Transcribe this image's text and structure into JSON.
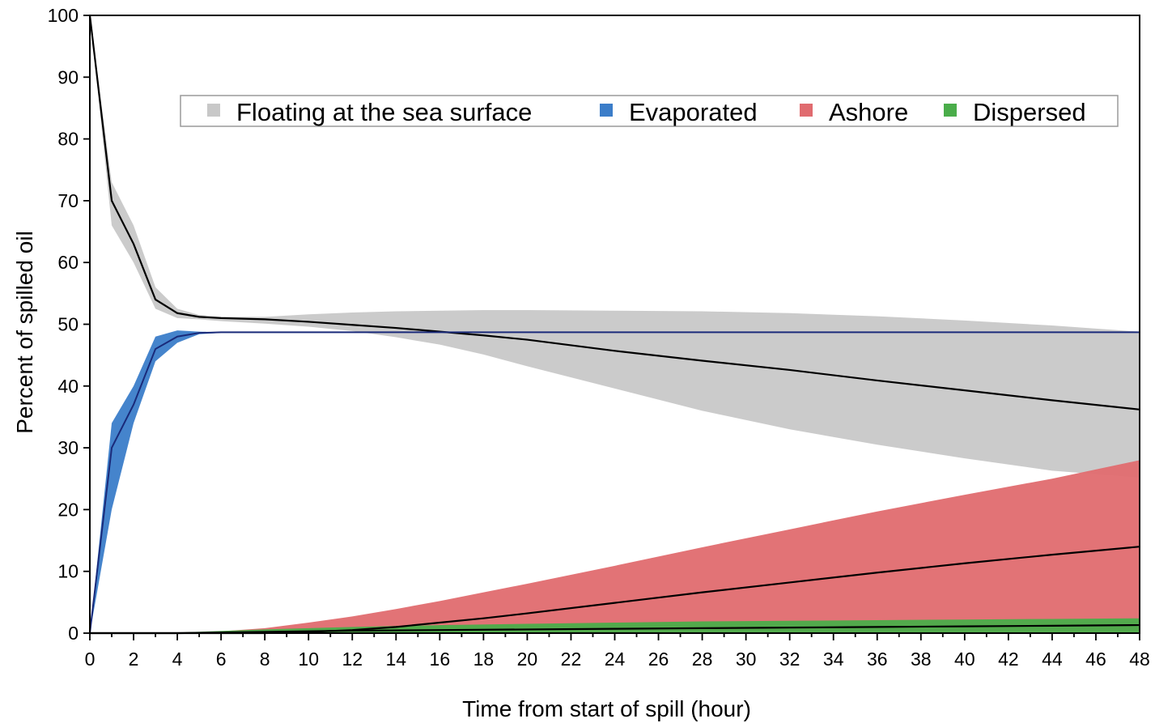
{
  "chart_data": {
    "type": "area",
    "xlabel": "Time from start of spill  (hour)",
    "ylabel": "Percent of spilled oil",
    "xlim": [
      0,
      48
    ],
    "ylim": [
      0,
      100
    ],
    "xticks": [
      0,
      2,
      4,
      6,
      8,
      10,
      12,
      14,
      16,
      18,
      20,
      22,
      24,
      26,
      28,
      30,
      32,
      34,
      36,
      38,
      40,
      42,
      44,
      46,
      48
    ],
    "yticks": [
      0,
      10,
      20,
      30,
      40,
      50,
      60,
      70,
      80,
      90,
      100
    ],
    "grid": false,
    "legend_position": "top",
    "series": [
      {
        "name": "Floating at the sea surface",
        "color": "#c8c8c8",
        "x": [
          0,
          1,
          2,
          3,
          4,
          5,
          6,
          8,
          10,
          12,
          14,
          16,
          18,
          20,
          24,
          28,
          32,
          36,
          40,
          44,
          48
        ],
        "mean": [
          100,
          70,
          63,
          54,
          51.8,
          51.2,
          51,
          50.8,
          50.4,
          49.9,
          49.4,
          48.8,
          48.2,
          47.5,
          45.7,
          44.1,
          42.6,
          40.9,
          39.3,
          37.7,
          36.2
        ],
        "upper": [
          100,
          73,
          66,
          56,
          52.5,
          51.5,
          51.2,
          51.2,
          51.6,
          51.9,
          52.1,
          52.2,
          52.3,
          52.3,
          52.2,
          52.1,
          51.8,
          51.3,
          50.6,
          49.8,
          48.8
        ],
        "lower": [
          100,
          66,
          60,
          52.5,
          51,
          50.8,
          50.5,
          50.1,
          49.6,
          48.9,
          47.9,
          46.7,
          45.1,
          43.2,
          39.6,
          36,
          33,
          30.5,
          28.3,
          26.3,
          25.2
        ]
      },
      {
        "name": "Evaporated",
        "color": "#3b7dc9",
        "x": [
          0,
          1,
          2,
          3,
          4,
          5,
          6,
          48
        ],
        "mean": [
          0,
          30,
          37,
          46,
          48,
          48.6,
          48.7,
          48.7
        ],
        "upper": [
          0,
          34,
          40,
          48,
          49,
          48.8,
          48.7,
          48.7
        ],
        "lower": [
          0,
          20,
          34,
          44,
          47,
          48.4,
          48.6,
          48.7
        ]
      },
      {
        "name": "Ashore",
        "color": "#e06b6f",
        "x": [
          0,
          4,
          6,
          8,
          10,
          12,
          14,
          16,
          18,
          20,
          24,
          28,
          32,
          36,
          40,
          44,
          48
        ],
        "mean": [
          0,
          0,
          0,
          0,
          0.2,
          0.5,
          1,
          1.7,
          2.4,
          3.2,
          4.9,
          6.6,
          8.2,
          9.8,
          11.3,
          12.7,
          14
        ],
        "upper": [
          0,
          0.1,
          0.3,
          0.8,
          1.7,
          2.7,
          3.9,
          5.2,
          6.6,
          8,
          10.9,
          13.9,
          16.8,
          19.7,
          22.4,
          25,
          28
        ],
        "lower": [
          0,
          0,
          0,
          0,
          0,
          0,
          0,
          0,
          0,
          0,
          0,
          0,
          0,
          0,
          0,
          0,
          0
        ]
      },
      {
        "name": "Dispersed",
        "color": "#4aad4a",
        "x": [
          0,
          4,
          8,
          12,
          16,
          20,
          24,
          28,
          32,
          36,
          40,
          44,
          48
        ],
        "mean": [
          0,
          0,
          0.2,
          0.4,
          0.5,
          0.6,
          0.7,
          0.8,
          0.9,
          1,
          1.1,
          1.2,
          1.3
        ],
        "upper": [
          0,
          0.1,
          0.6,
          1,
          1.3,
          1.5,
          1.7,
          1.9,
          2,
          2.1,
          2.2,
          2.3,
          2.4
        ],
        "lower": [
          0,
          0,
          0,
          0,
          0,
          0,
          0,
          0,
          0,
          0,
          0,
          0,
          0
        ]
      }
    ]
  }
}
